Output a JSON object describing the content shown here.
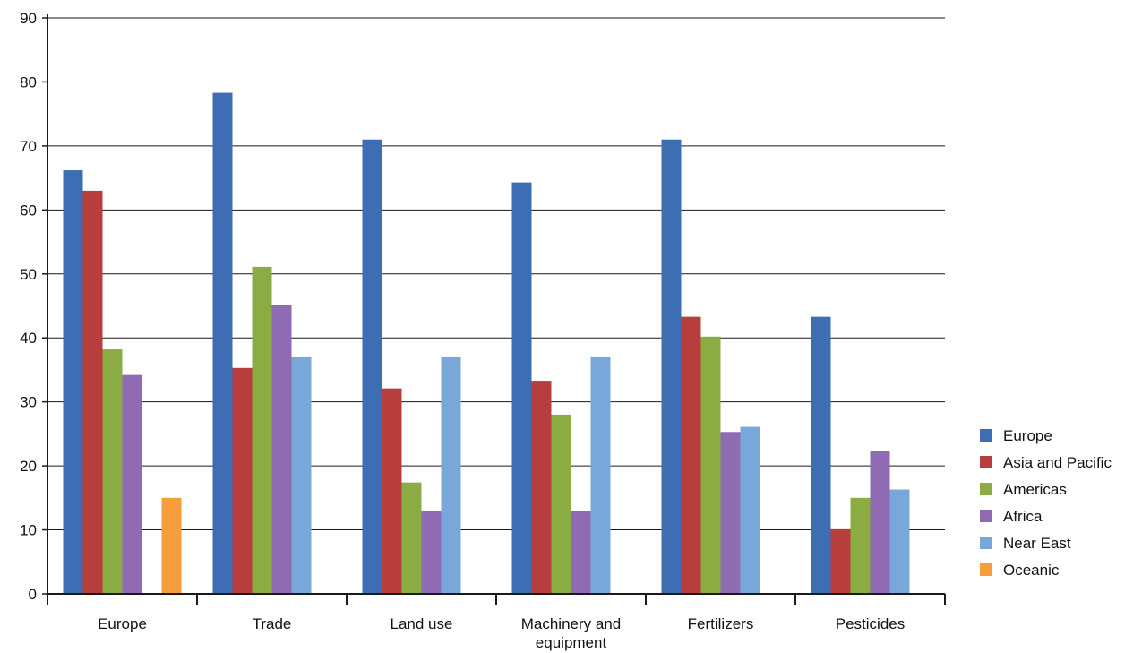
{
  "chart_data": {
    "type": "bar",
    "title": "",
    "xlabel": "",
    "ylabel": "",
    "ylim": [
      0,
      90
    ],
    "yticks": [
      0,
      10,
      20,
      30,
      40,
      50,
      60,
      70,
      80,
      90
    ],
    "grid": true,
    "legend_position": "right",
    "categories": [
      "Europe",
      "Trade",
      "Land use",
      "Machinery and equipment",
      "Fertilizers",
      "Pesticides"
    ],
    "series": [
      {
        "name": "Europe",
        "color": "#3d6db3",
        "values": [
          66.2,
          78.3,
          71.0,
          64.3,
          71.0,
          43.3
        ]
      },
      {
        "name": "Asia and Pacific",
        "color": "#b83d3d",
        "values": [
          63.0,
          35.3,
          32.1,
          33.3,
          43.3,
          10.1
        ]
      },
      {
        "name": "Americas",
        "color": "#8aac43",
        "values": [
          38.2,
          51.1,
          17.4,
          28.0,
          40.2,
          15.0
        ]
      },
      {
        "name": "Africa",
        "color": "#8f6bb3",
        "values": [
          34.2,
          45.2,
          13.0,
          13.0,
          25.3,
          22.3
        ]
      },
      {
        "name": "Near East",
        "color": "#78a8da",
        "values": [
          null,
          37.1,
          37.1,
          37.1,
          26.1,
          16.3
        ]
      },
      {
        "name": "Oceanic",
        "color": "#f79d3b",
        "values": [
          15.0,
          null,
          null,
          null,
          null,
          null
        ]
      }
    ]
  }
}
